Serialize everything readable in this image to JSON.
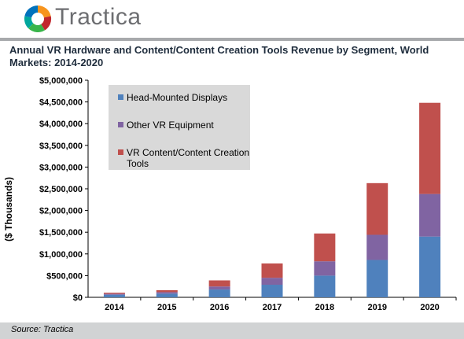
{
  "brand": {
    "name": "Tractica",
    "logo_icon": "hexagon-logo-icon"
  },
  "source": "Source: Tractica",
  "chart_data": {
    "type": "bar",
    "stacked": true,
    "title": "Annual VR Hardware and Content/Content Creation Tools Revenue by Segment, World Markets: 2014-2020",
    "xlabel": "",
    "ylabel": "($ Thousands)",
    "categories": [
      "2014",
      "2015",
      "2016",
      "2017",
      "2018",
      "2019",
      "2020"
    ],
    "ylim": [
      0,
      5000000
    ],
    "yticks": [
      "$0",
      "$500,000",
      "$1,000,000",
      "$1,500,000",
      "$2,000,000",
      "$2,500,000",
      "$3,000,000",
      "$3,500,000",
      "$4,000,000",
      "$4,500,000",
      "$5,000,000"
    ],
    "grid": false,
    "legend_position": "top-left",
    "series": [
      {
        "name": "Head-Mounted Displays",
        "color": "#4f81bd",
        "values": [
          60000,
          85000,
          180000,
          290000,
          500000,
          860000,
          1400000
        ]
      },
      {
        "name": "Other VR Equipment",
        "color": "#8064a2",
        "values": [
          20000,
          35000,
          70000,
          160000,
          330000,
          580000,
          980000
        ]
      },
      {
        "name": "VR Content/Content Creation Tools",
        "color": "#c0504d",
        "values": [
          25000,
          45000,
          140000,
          330000,
          640000,
          1190000,
          2100000
        ]
      }
    ]
  }
}
